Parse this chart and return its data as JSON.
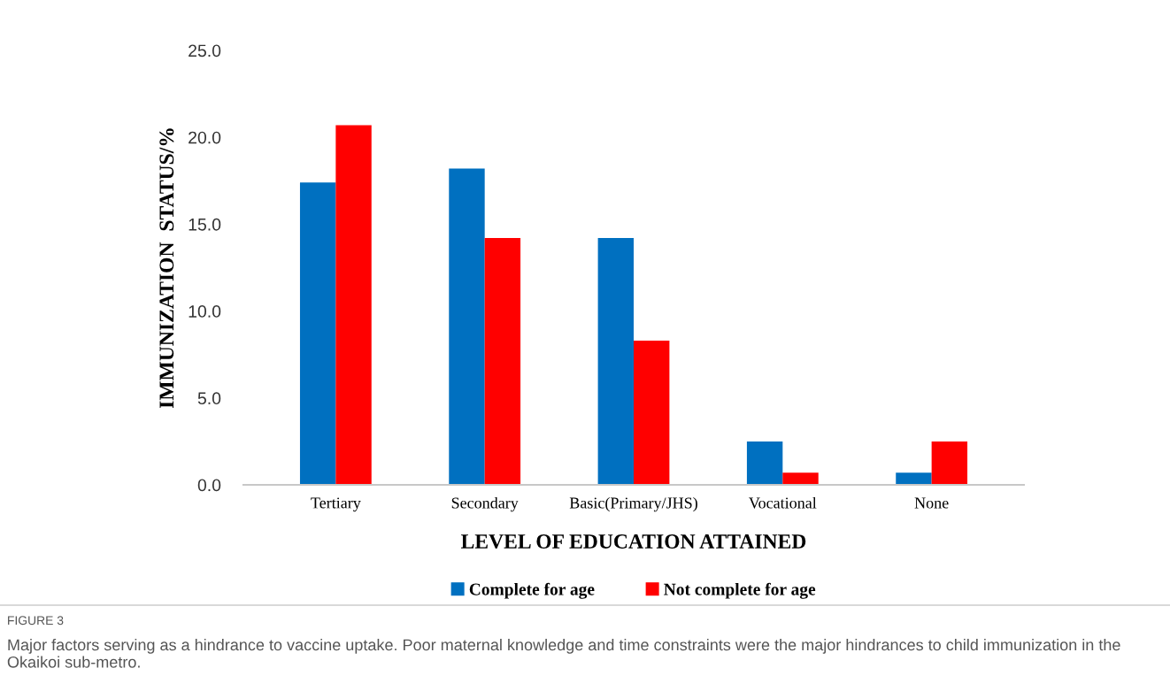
{
  "chart_data": {
    "type": "bar",
    "categories": [
      "Tertiary",
      "Secondary",
      "Basic(Primary/JHS)",
      "Vocational",
      "None"
    ],
    "series": [
      {
        "name": "Complete for age",
        "color": "#0070c0",
        "values": [
          17.4,
          18.2,
          14.2,
          2.5,
          0.7
        ]
      },
      {
        "name": "Not complete for age",
        "color": "#ff0000",
        "values": [
          20.7,
          14.2,
          8.3,
          0.7,
          2.5
        ]
      }
    ],
    "xlabel": "LEVEL OF EDUCATION ATTAINED",
    "ylabel": "IMMUNIZATION  STATUS/%",
    "ylim": [
      0,
      25
    ],
    "yticks": [
      {
        "value": 0,
        "label": "0.0"
      },
      {
        "value": 5,
        "label": "5.0"
      },
      {
        "value": 10,
        "label": "10.0"
      },
      {
        "value": 15,
        "label": "15.0"
      },
      {
        "value": 20,
        "label": "20.0"
      },
      {
        "value": 25,
        "label": "25.0"
      }
    ],
    "grid": false,
    "legend": "bottom",
    "annotations": [
      "FIGURE 3",
      "Major factors serving as a hindrance to vaccine uptake. Poor maternal knowledge and time constraints were the major hindrances to child immunization in the Okaikoi sub-metro."
    ]
  }
}
